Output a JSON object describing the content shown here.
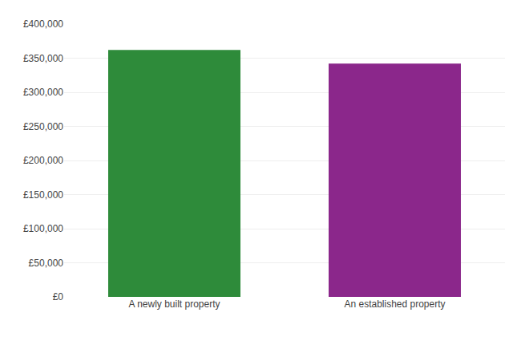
{
  "chart_data": {
    "type": "bar",
    "categories": [
      "A newly built property",
      "An established property"
    ],
    "values": [
      362000,
      342000
    ],
    "colors": [
      "#2e8b3a",
      "#8b278b"
    ],
    "ylim": [
      0,
      400000
    ],
    "yticks": [
      {
        "value": 0,
        "label": "£0"
      },
      {
        "value": 50000,
        "label": "£50,000"
      },
      {
        "value": 100000,
        "label": "£100,000"
      },
      {
        "value": 150000,
        "label": "£150,000"
      },
      {
        "value": 200000,
        "label": "£200,000"
      },
      {
        "value": 250000,
        "label": "£250,000"
      },
      {
        "value": 300000,
        "label": "£300,000"
      },
      {
        "value": 350000,
        "label": "£350,000"
      },
      {
        "value": 400000,
        "label": "£400,000"
      }
    ],
    "grid": true
  }
}
